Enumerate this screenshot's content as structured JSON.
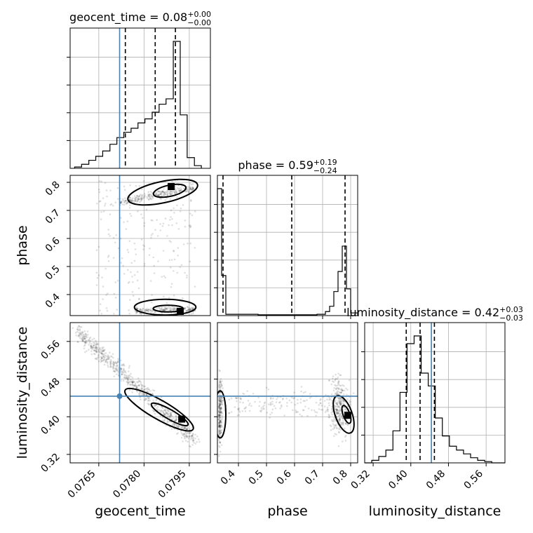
{
  "chart_data": {
    "type": "corner",
    "parameters": [
      "geocent_time",
      "phase",
      "luminosity_distance"
    ],
    "titles": {
      "geocent_time": {
        "name": "geocent_time",
        "median": "0.08",
        "plus": "+0.00",
        "minus": "−0.00"
      },
      "phase": {
        "name": "phase",
        "median": "0.59",
        "plus": "+0.19",
        "minus": "−0.24"
      },
      "luminosity_distance": {
        "name": "luminosity_distance",
        "median": "0.42",
        "plus": "+0.03",
        "minus": "−0.03"
      }
    },
    "ranges": {
      "geocent_time": [
        0.07555,
        0.0802
      ],
      "phase": [
        0.325,
        0.825
      ],
      "luminosity_distance": [
        0.302,
        0.6
      ]
    },
    "ticks": {
      "geocent_time": [
        0.0765,
        0.078,
        0.0795
      ],
      "phase": [
        0.4,
        0.5,
        0.6,
        0.7,
        0.8
      ],
      "luminosity_distance": [
        0.32,
        0.4,
        0.48,
        0.56
      ]
    },
    "tick_labels": {
      "geocent_time": [
        "0.0765",
        "0.0780",
        "0.0795"
      ],
      "phase": [
        "0.4",
        "0.5",
        "0.6",
        "0.7",
        "0.8"
      ],
      "luminosity_distance": [
        "0.32",
        "0.40",
        "0.48",
        "0.56"
      ]
    },
    "truths": {
      "geocent_time": 0.07719,
      "luminosity_distance": 0.4437
    },
    "quantiles": {
      "geocent_time": [
        0.07738,
        0.07837,
        0.07904
      ],
      "phase": [
        0.345,
        0.59,
        0.78
      ],
      "luminosity_distance": [
        0.3903,
        0.4197,
        0.4501
      ]
    },
    "histograms": {
      "geocent_time": {
        "edges": [
          0.0757,
          0.07593,
          0.07617,
          0.0764,
          0.07663,
          0.07687,
          0.0771,
          0.07733,
          0.07757,
          0.0778,
          0.07803,
          0.07827,
          0.0785,
          0.07873,
          0.07897,
          0.0792,
          0.07943,
          0.07967,
          0.0799
        ],
        "counts": [
          1,
          3,
          6,
          9,
          13,
          18,
          23,
          27,
          30,
          34,
          37,
          42,
          48,
          52,
          95,
          40,
          8,
          2
        ]
      },
      "phase": {
        "edges": [
          0.325,
          0.34,
          0.355,
          0.38,
          0.41,
          0.44,
          0.47,
          0.5,
          0.53,
          0.56,
          0.59,
          0.62,
          0.65,
          0.68,
          0.71,
          0.725,
          0.74,
          0.755,
          0.77,
          0.785,
          0.8,
          0.825
        ],
        "counts": [
          95,
          30,
          1,
          1,
          1,
          1,
          0.6,
          0.6,
          0.6,
          0.6,
          0.6,
          0.6,
          0.6,
          1,
          3,
          7,
          18,
          33,
          52,
          20,
          2
        ]
      },
      "luminosity_distance": {
        "edges": [
          0.302,
          0.317,
          0.332,
          0.347,
          0.362,
          0.377,
          0.392,
          0.407,
          0.422,
          0.437,
          0.452,
          0.467,
          0.482,
          0.497,
          0.512,
          0.527,
          0.542,
          0.557,
          0.572,
          0.6
        ],
        "counts": [
          0,
          2,
          5,
          10,
          25,
          55,
          93,
          99,
          70,
          60,
          35,
          21,
          13,
          10,
          7,
          4,
          2,
          1,
          0
        ]
      }
    }
  }
}
